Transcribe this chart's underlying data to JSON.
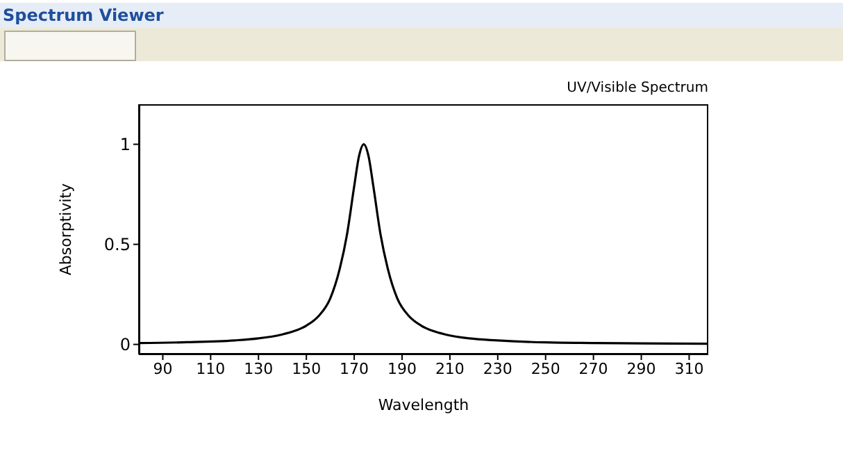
{
  "chart_data": {
    "type": "line",
    "title": "Spectrum Viewer",
    "subtitle": "UV/Visible Spectrum",
    "xlabel": "Wavelength",
    "ylabel": "Absorptivity",
    "x": [
      80,
      100,
      120,
      130,
      140,
      145,
      150,
      155,
      160,
      164,
      167,
      170,
      172,
      174,
      176,
      178,
      181,
      184,
      188,
      193,
      198,
      203,
      208,
      218,
      230,
      250,
      270,
      290,
      318
    ],
    "series": [
      {
        "color": "#000000",
        "values": [
          0.007,
          0.011,
          0.02,
          0.03,
          0.05,
          0.067,
          0.094,
          0.14,
          0.23,
          0.38,
          0.55,
          0.79,
          0.94,
          1,
          0.94,
          0.79,
          0.55,
          0.38,
          0.23,
          0.14,
          0.094,
          0.067,
          0.05,
          0.03,
          0.02,
          0.01,
          0.007,
          0.005,
          0.003
        ]
      }
    ],
    "xlim": [
      80,
      318
    ],
    "xticks": [
      90,
      110,
      130,
      150,
      170,
      190,
      210,
      230,
      250,
      270,
      290,
      310
    ],
    "ylim": [
      -0.05,
      1.2
    ],
    "yticks": [
      0,
      0.5,
      1
    ],
    "grid": false,
    "legend": false,
    "marker": "none",
    "line_style": "solid"
  }
}
